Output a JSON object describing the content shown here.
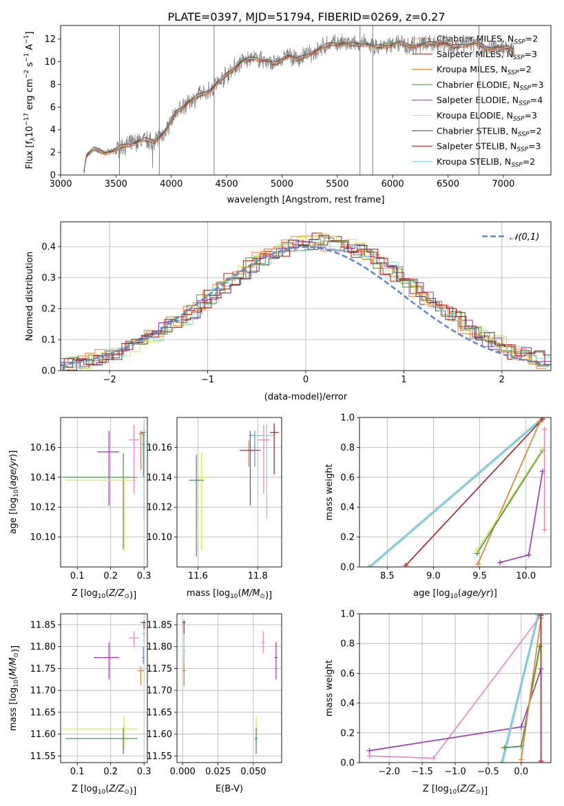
{
  "colors": {
    "obs": "#808080",
    "models": [
      "#f58231",
      "#b8181c",
      "#d07a1c",
      "#4c8c3c",
      "#9b2fb3",
      "#d4ec3c",
      "#404040",
      "#b8000c",
      "#7ad8e0"
    ],
    "normal": "#5b8bd8",
    "pts": [
      "#e57a2a",
      "#b81818",
      "#9b30b0",
      "#d2ec4a",
      "#7acbd6",
      "#3c8c54",
      "#e882c4",
      "#5b8bd8"
    ]
  },
  "chart_data": [
    {
      "type": "line",
      "title": "PLATE=0397, MJD=51794, FIBERID=0269, z=0.27",
      "xlabel": "wavelength [Angstrom, rest frame]",
      "ylabel": "Flux [f_λ 10^-17 erg cm^-2 s^-1 A^-1]",
      "xlim": [
        3000,
        7430
      ],
      "ylim": [
        0,
        13.2
      ],
      "xticks": [
        3000,
        3500,
        4000,
        4500,
        5000,
        5500,
        6000,
        6500,
        7000
      ],
      "yticks": [
        0,
        2,
        4,
        6,
        8,
        10,
        12
      ],
      "legend_loc": "upper-right",
      "legend": [
        "Chabrier MILES, N_SSP=2",
        "Salpeter MILES, N_SSP=3",
        "Kroupa MILES, N_SSP=2",
        "Chabrier ELODIE, N_SSP=3",
        "Salpeter ELODIE, N_SSP=4",
        "Kroupa ELODIE, N_SSP=3",
        "Chabrier STELIB, N_SSP=2",
        "Salpeter STELIB, N_SSP=3",
        "Kroupa STELIB, N_SSP=2"
      ],
      "continuum": [
        [
          3210,
          0.3
        ],
        [
          3230,
          1.6
        ],
        [
          3300,
          2.3
        ],
        [
          3400,
          2.0
        ],
        [
          3480,
          2.1
        ],
        [
          3550,
          2.5
        ],
        [
          3650,
          2.8
        ],
        [
          3750,
          3.1
        ],
        [
          3850,
          3.0
        ],
        [
          3950,
          3.9
        ],
        [
          4050,
          5.6
        ],
        [
          4150,
          6.4
        ],
        [
          4250,
          7.0
        ],
        [
          4350,
          7.5
        ],
        [
          4450,
          8.4
        ],
        [
          4550,
          9.3
        ],
        [
          4650,
          10.1
        ],
        [
          4750,
          10.3
        ],
        [
          4850,
          10.1
        ],
        [
          4950,
          9.8
        ],
        [
          5050,
          10.6
        ],
        [
          5150,
          10.2
        ],
        [
          5250,
          10.7
        ],
        [
          5350,
          11.2
        ],
        [
          5450,
          11.6
        ],
        [
          5550,
          11.6
        ],
        [
          5650,
          11.5
        ],
        [
          5750,
          11.6
        ],
        [
          5850,
          11.3
        ],
        [
          5950,
          11.4
        ],
        [
          6050,
          11.7
        ],
        [
          6150,
          11.4
        ],
        [
          6250,
          11.5
        ],
        [
          6350,
          11.6
        ],
        [
          6450,
          11.7
        ],
        [
          6550,
          11.3
        ],
        [
          6650,
          11.5
        ],
        [
          6750,
          11.6
        ],
        [
          6850,
          11.2
        ],
        [
          6950,
          11.3
        ],
        [
          7050,
          11.2
        ],
        [
          7100,
          11.0
        ]
      ],
      "spikes": [
        4387,
        5705,
        5820,
        6780,
        3892,
        3532
      ]
    },
    {
      "type": "bar",
      "xlabel": "(data-model)/error",
      "ylabel": "Normed distribution",
      "xlim": [
        -2.5,
        2.5
      ],
      "ylim": [
        0,
        0.48
      ],
      "xticks": [
        -2,
        -1,
        0,
        1,
        2
      ],
      "yticks": [
        0.0,
        0.1,
        0.2,
        0.3,
        0.4
      ],
      "legend": [
        "𝒩(0,1)"
      ],
      "legend_loc": "top-right",
      "bin_width": 0.1,
      "histogram_center": [
        0.02,
        0.02,
        0.03,
        0.04,
        0.05,
        0.06,
        0.07,
        0.08,
        0.09,
        0.11,
        0.13,
        0.15,
        0.17,
        0.19,
        0.22,
        0.24,
        0.27,
        0.29,
        0.32,
        0.34,
        0.36,
        0.37,
        0.39,
        0.4,
        0.41,
        0.41,
        0.42,
        0.41,
        0.41,
        0.4,
        0.39,
        0.37,
        0.35,
        0.33,
        0.31,
        0.28,
        0.26,
        0.23,
        0.21,
        0.19,
        0.17,
        0.14,
        0.12,
        0.1,
        0.09,
        0.08,
        0.06,
        0.05,
        0.04,
        0.03
      ]
    },
    {
      "type": "scatter",
      "xlabel": "Z [log10(Z/Z⊙)]",
      "ylabel": "age  [log10(age/yr)]",
      "xlim": [
        0.05,
        0.31
      ],
      "ylim": [
        10.08,
        10.18
      ],
      "xticks": [
        0.1,
        0.2,
        0.3
      ],
      "yticks": [
        10.1,
        10.12,
        10.14,
        10.16
      ],
      "points": [
        {
          "x": 0.195,
          "y": 10.157,
          "xe": [
            0.16,
            0.225
          ],
          "ye": [
            10.121,
            10.171
          ],
          "c": 2
        },
        {
          "x": 0.238,
          "y": 10.14,
          "xe": [
            0.055,
            0.28
          ],
          "ye": [
            10.092,
            10.156
          ],
          "c": 5
        },
        {
          "x": 0.24,
          "y": 10.138,
          "xe": [
            0.065,
            0.28
          ],
          "ye": [
            10.09,
            10.14
          ],
          "c": 3
        },
        {
          "x": 0.27,
          "y": 10.165,
          "xe": [
            0.255,
            0.285
          ],
          "ye": [
            10.129,
            10.175
          ],
          "c": 6
        },
        {
          "x": 0.29,
          "y": 10.169,
          "xe": [
            0.285,
            0.3
          ],
          "ye": [
            10.145,
            10.171
          ],
          "c": 0
        },
        {
          "x": 0.3,
          "y": 10.17,
          "xe": [
            0.29,
            0.305
          ],
          "ye": [
            10.142,
            10.172
          ],
          "c": 1
        },
        {
          "x": 0.3,
          "y": 10.168,
          "xe": [
            0.295,
            0.305
          ],
          "ye": [
            10.112,
            10.176
          ],
          "c": 4
        },
        {
          "x": 0.298,
          "y": 10.162,
          "xe": [
            0.294,
            0.302
          ],
          "ye": [
            10.14,
            10.17
          ],
          "c": 7
        }
      ]
    },
    {
      "type": "scatter",
      "xlabel": "mass [log10(M/M⊙)]",
      "xlim": [
        11.53,
        11.88
      ],
      "ylim": [
        10.08,
        10.18
      ],
      "xticks": [
        11.6,
        11.8
      ],
      "yticks": [
        10.1,
        10.12,
        10.14,
        10.16
      ],
      "points": [
        {
          "x": 11.595,
          "y": 10.138,
          "xe": [
            11.57,
            11.62
          ],
          "ye": [
            10.087,
            10.155
          ],
          "c": 5
        },
        {
          "x": 11.612,
          "y": 10.14,
          "xe": [
            11.6,
            11.64
          ],
          "ye": [
            10.092,
            10.157
          ],
          "c": 3
        },
        {
          "x": 11.77,
          "y": 10.158,
          "xe": [
            11.74,
            11.79
          ],
          "ye": [
            10.147,
            10.165
          ],
          "c": 0
        },
        {
          "x": 11.775,
          "y": 10.158,
          "xe": [
            11.74,
            11.81
          ],
          "ye": [
            10.121,
            10.171
          ],
          "c": 2
        },
        {
          "x": 11.79,
          "y": 10.168,
          "xe": [
            11.77,
            11.81
          ],
          "ye": [
            10.147,
            10.171
          ],
          "c": 7
        },
        {
          "x": 11.82,
          "y": 10.165,
          "xe": [
            11.8,
            11.84
          ],
          "ye": [
            10.129,
            10.175
          ],
          "c": 6
        },
        {
          "x": 11.83,
          "y": 10.168,
          "xe": [
            11.79,
            11.855
          ],
          "ye": [
            10.112,
            10.176
          ],
          "c": 4
        },
        {
          "x": 11.855,
          "y": 10.17,
          "xe": [
            11.84,
            11.87
          ],
          "ye": [
            10.142,
            10.176
          ],
          "c": 1
        }
      ]
    },
    {
      "type": "line",
      "xlabel": "age  [log10(age/yr)]",
      "ylabel": "mass weight",
      "xlim": [
        8.2,
        10.27
      ],
      "ylim": [
        0,
        1
      ],
      "xticks": [
        8.5,
        9.0,
        9.5,
        10.0
      ],
      "yticks": [
        0.0,
        0.2,
        0.4,
        0.6,
        0.8,
        1.0
      ],
      "series": [
        {
          "c": 4,
          "x": [
            8.32,
            10.18
          ],
          "y": [
            0.0,
            0.99
          ]
        },
        {
          "c": 4,
          "x": [
            8.3,
            10.18
          ],
          "y": [
            0.0,
            1.0
          ]
        },
        {
          "c": 1,
          "x": [
            8.7,
            10.18
          ],
          "y": [
            0.01,
            0.99
          ]
        },
        {
          "c": 0,
          "x": [
            9.48,
            10.15
          ],
          "y": [
            0.02,
            0.97
          ]
        },
        {
          "c": 5,
          "x": [
            9.47,
            10.18
          ],
          "y": [
            0.09,
            0.78
          ]
        },
        {
          "c": 3,
          "x": [
            9.47,
            10.18
          ],
          "y": [
            0.11,
            0.79
          ]
        },
        {
          "c": 2,
          "x": [
            9.72,
            10.03,
            10.18
          ],
          "y": [
            0.03,
            0.08,
            0.64
          ]
        },
        {
          "c": 6,
          "x": [
            10.2,
            10.2
          ],
          "y": [
            0.92,
            0.25
          ]
        }
      ]
    },
    {
      "type": "scatter",
      "xlabel": "Z [log10(Z/Z⊙)]",
      "ylabel": "mass [log10(M/M⊙)]",
      "xlim": [
        0.05,
        0.31
      ],
      "ylim": [
        11.535,
        11.875
      ],
      "xticks": [
        0.1,
        0.2,
        0.3
      ],
      "yticks": [
        11.55,
        11.6,
        11.65,
        11.7,
        11.75,
        11.8,
        11.85
      ],
      "points": [
        {
          "x": 0.24,
          "y": 11.612,
          "xe": [
            0.055,
            0.28
          ],
          "ye": [
            11.565,
            11.642
          ],
          "c": 3
        },
        {
          "x": 0.238,
          "y": 11.59,
          "xe": [
            0.065,
            0.28
          ],
          "ye": [
            11.555,
            11.615
          ],
          "c": 5
        },
        {
          "x": 0.195,
          "y": 11.775,
          "xe": [
            0.15,
            0.225
          ],
          "ye": [
            11.725,
            11.81
          ],
          "c": 2
        },
        {
          "x": 0.27,
          "y": 11.82,
          "xe": [
            0.255,
            0.285
          ],
          "ye": [
            11.8,
            11.835
          ],
          "c": 6
        },
        {
          "x": 0.29,
          "y": 11.745,
          "xe": [
            0.28,
            0.3
          ],
          "ye": [
            11.712,
            11.755
          ],
          "c": 0
        },
        {
          "x": 0.298,
          "y": 11.775,
          "xe": [
            0.294,
            0.302
          ],
          "ye": [
            11.76,
            11.8
          ],
          "c": 7
        },
        {
          "x": 0.3,
          "y": 11.83,
          "xe": [
            0.295,
            0.305
          ],
          "ye": [
            11.81,
            11.845
          ],
          "c": 4
        },
        {
          "x": 0.3,
          "y": 11.855,
          "xe": [
            0.29,
            0.305
          ],
          "ye": [
            11.84,
            11.86
          ],
          "c": 1
        }
      ]
    },
    {
      "type": "scatter",
      "xlabel": "E(B-V)",
      "xlim": [
        -0.004,
        0.07
      ],
      "ylim": [
        11.535,
        11.875
      ],
      "xticks": [
        0.0,
        0.025,
        0.05
      ],
      "yticks": [
        11.55,
        11.6,
        11.65,
        11.7,
        11.75,
        11.8,
        11.85
      ],
      "points": [
        {
          "x": 0.001,
          "y": 11.855,
          "xe": [
            0.0,
            0.002
          ],
          "ye": [
            11.83,
            11.86
          ],
          "c": 1
        },
        {
          "x": 0.001,
          "y": 11.745,
          "xe": [
            0.0,
            0.002
          ],
          "ye": [
            11.71,
            11.78
          ],
          "c": 0
        },
        {
          "x": 0.001,
          "y": 11.79,
          "xe": [
            0.0,
            0.002
          ],
          "ye": [
            11.76,
            11.83
          ],
          "c": 4
        },
        {
          "x": 0.052,
          "y": 11.61,
          "xe": [
            0.051,
            0.053
          ],
          "ye": [
            11.57,
            11.64
          ],
          "c": 3
        },
        {
          "x": 0.052,
          "y": 11.59,
          "xe": [
            0.051,
            0.053
          ],
          "ye": [
            11.555,
            11.615
          ],
          "c": 5
        },
        {
          "x": 0.057,
          "y": 11.81,
          "xe": [
            0.056,
            0.058
          ],
          "ye": [
            11.785,
            11.835
          ],
          "c": 6
        },
        {
          "x": 0.066,
          "y": 11.775,
          "xe": [
            0.065,
            0.067
          ],
          "ye": [
            11.725,
            11.81
          ],
          "c": 2
        }
      ]
    },
    {
      "type": "line",
      "xlabel": "Z [log10(Z/Z⊙)]",
      "ylabel": "mass weight",
      "xlim": [
        -2.45,
        0.45
      ],
      "ylim": [
        0,
        1
      ],
      "xticks": [
        -2.0,
        -1.5,
        -1.0,
        -0.5,
        0.0
      ],
      "yticks": [
        0.0,
        0.2,
        0.4,
        0.6,
        0.8,
        1.0
      ],
      "series": [
        {
          "c": 6,
          "x": [
            -2.3,
            -1.33,
            0.3
          ],
          "y": [
            0.045,
            0.03,
            0.99
          ]
        },
        {
          "c": 2,
          "x": [
            -2.3,
            0.0,
            0.3
          ],
          "y": [
            0.08,
            0.24,
            0.63
          ]
        },
        {
          "c": 4,
          "x": [
            -0.3,
            0.25
          ],
          "y": [
            0.0,
            0.99
          ]
        },
        {
          "c": 4,
          "x": [
            -0.28,
            0.27
          ],
          "y": [
            0.0,
            1.0
          ]
        },
        {
          "c": 3,
          "x": [
            -0.28,
            0.0,
            0.3
          ],
          "y": [
            0.1,
            0.11,
            0.79
          ]
        },
        {
          "c": 5,
          "x": [
            -0.25,
            0.0,
            0.28
          ],
          "y": [
            0.1,
            0.11,
            0.78
          ]
        },
        {
          "c": 0,
          "x": [
            0.0,
            0.3
          ],
          "y": [
            0.02,
            0.97
          ]
        },
        {
          "c": 1,
          "x": [
            0.3,
            0.3
          ],
          "y": [
            0.01,
            0.99
          ]
        }
      ]
    }
  ]
}
